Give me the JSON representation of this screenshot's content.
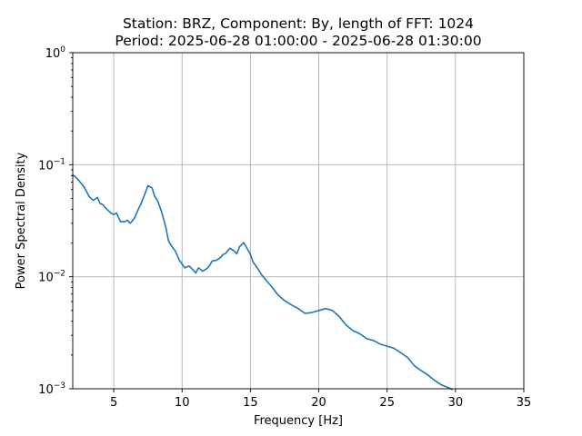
{
  "chart_data": {
    "type": "line",
    "title_line1": "Station: BRZ, Component: By, length of FFT: 1024",
    "title_line2": "Period: 2025-06-28 01:00:00 - 2025-06-28 01:30:00",
    "xlabel": "Frequency [Hz]",
    "ylabel": "Power Spectral Density",
    "xlim": [
      2,
      35
    ],
    "ylim": [
      0.001,
      1
    ],
    "yscale": "log",
    "grid": true,
    "x_ticks": [
      {
        "value": 5,
        "label": "5"
      },
      {
        "value": 10,
        "label": "10"
      },
      {
        "value": 15,
        "label": "15"
      },
      {
        "value": 20,
        "label": "20"
      },
      {
        "value": 25,
        "label": "25"
      },
      {
        "value": 30,
        "label": "30"
      },
      {
        "value": 35,
        "label": "35"
      }
    ],
    "y_ticks": [
      {
        "value": 0.001,
        "base": "10",
        "exp": "−3"
      },
      {
        "value": 0.01,
        "base": "10",
        "exp": "−2"
      },
      {
        "value": 0.1,
        "base": "10",
        "exp": "−1"
      },
      {
        "value": 1,
        "base": "10",
        "exp": "0"
      }
    ],
    "series": [
      {
        "color": "#1f77b4",
        "x": [
          2.0,
          2.2,
          2.5,
          2.8,
          3.0,
          3.2,
          3.5,
          3.8,
          4.0,
          4.2,
          4.5,
          4.8,
          5.0,
          5.2,
          5.5,
          5.8,
          6.0,
          6.2,
          6.5,
          6.8,
          7.0,
          7.2,
          7.5,
          7.8,
          8.0,
          8.2,
          8.5,
          8.8,
          9.0,
          9.2,
          9.5,
          9.8,
          10.0,
          10.2,
          10.5,
          10.8,
          11.0,
          11.2,
          11.5,
          11.8,
          12.0,
          12.2,
          12.5,
          12.8,
          13.0,
          13.2,
          13.5,
          13.8,
          14.0,
          14.2,
          14.5,
          14.8,
          15.0,
          15.2,
          15.5,
          15.8,
          16.0,
          16.5,
          17.0,
          17.5,
          18.0,
          18.5,
          19.0,
          19.5,
          20.0,
          20.5,
          21.0,
          21.5,
          22.0,
          22.5,
          23.0,
          23.5,
          24.0,
          24.5,
          25.0,
          25.5,
          26.0,
          26.5,
          27.0,
          27.5,
          28.0,
          28.5,
          29.0,
          29.5,
          29.8
        ],
        "y": [
          0.081,
          0.078,
          0.071,
          0.064,
          0.058,
          0.052,
          0.048,
          0.051,
          0.045,
          0.044,
          0.04,
          0.037,
          0.036,
          0.037,
          0.031,
          0.031,
          0.032,
          0.03,
          0.033,
          0.04,
          0.045,
          0.052,
          0.065,
          0.062,
          0.052,
          0.048,
          0.038,
          0.028,
          0.021,
          0.019,
          0.017,
          0.014,
          0.013,
          0.012,
          0.0125,
          0.0115,
          0.0108,
          0.012,
          0.0112,
          0.0118,
          0.0125,
          0.0138,
          0.014,
          0.0148,
          0.0158,
          0.0162,
          0.018,
          0.017,
          0.016,
          0.0185,
          0.0202,
          0.0175,
          0.0158,
          0.0135,
          0.012,
          0.0105,
          0.0098,
          0.0083,
          0.0069,
          0.0061,
          0.0056,
          0.0052,
          0.0047,
          0.0048,
          0.005,
          0.0052,
          0.005,
          0.0044,
          0.0037,
          0.0033,
          0.0031,
          0.0028,
          0.0027,
          0.0025,
          0.0024,
          0.0023,
          0.0021,
          0.0019,
          0.0016,
          0.00145,
          0.00132,
          0.00118,
          0.00108,
          0.00102,
          0.00098
        ]
      }
    ]
  }
}
